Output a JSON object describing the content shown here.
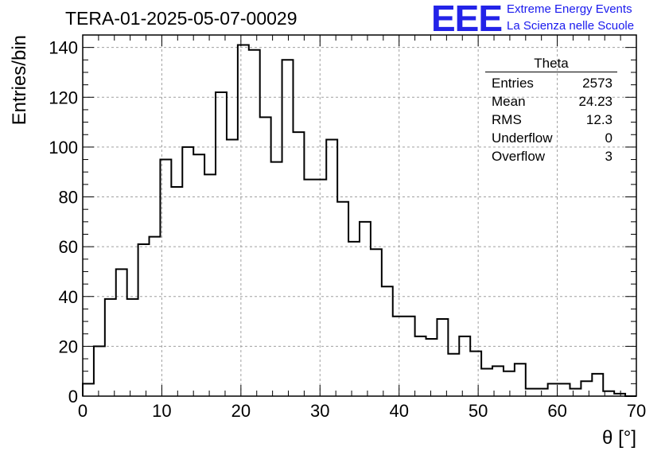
{
  "header": {
    "title": "TERA-01-2025-05-07-00029",
    "logo_text": "EEE",
    "logo_line1": "Extreme Energy Events",
    "logo_line2": "La Scienza nelle Scuole"
  },
  "stats": {
    "title": "Theta",
    "rows": [
      {
        "label": "Entries",
        "value": "2573"
      },
      {
        "label": "Mean",
        "value": "24.23"
      },
      {
        "label": "RMS",
        "value": "12.3"
      },
      {
        "label": "Underflow",
        "value": "0"
      },
      {
        "label": "Overflow",
        "value": "3"
      }
    ]
  },
  "colors": {
    "line": "#000000",
    "grid": "#a0a0a0",
    "logo": "#2323e8",
    "logo_text": "#1a1aee"
  },
  "chart_data": {
    "type": "histogram",
    "xlabel": "θ [°]",
    "ylabel": "Entries/bin",
    "xlim": [
      0,
      70
    ],
    "ylim": [
      0,
      145
    ],
    "x_ticks": [
      0,
      10,
      20,
      30,
      40,
      50,
      60,
      70
    ],
    "y_ticks": [
      0,
      20,
      40,
      60,
      80,
      100,
      120,
      140
    ],
    "grid": true,
    "bin_width": 1.4,
    "bin_edges_start": 0,
    "values": [
      5,
      20,
      39,
      51,
      39,
      61,
      64,
      95,
      84,
      100,
      97,
      89,
      122,
      103,
      141,
      139,
      112,
      94,
      135,
      106,
      87,
      87,
      103,
      78,
      62,
      70,
      59,
      44,
      32,
      32,
      24,
      23,
      31,
      17,
      24,
      18,
      11,
      12,
      10,
      13,
      3,
      3,
      5,
      5,
      3,
      6,
      9,
      2,
      1,
      0
    ]
  }
}
